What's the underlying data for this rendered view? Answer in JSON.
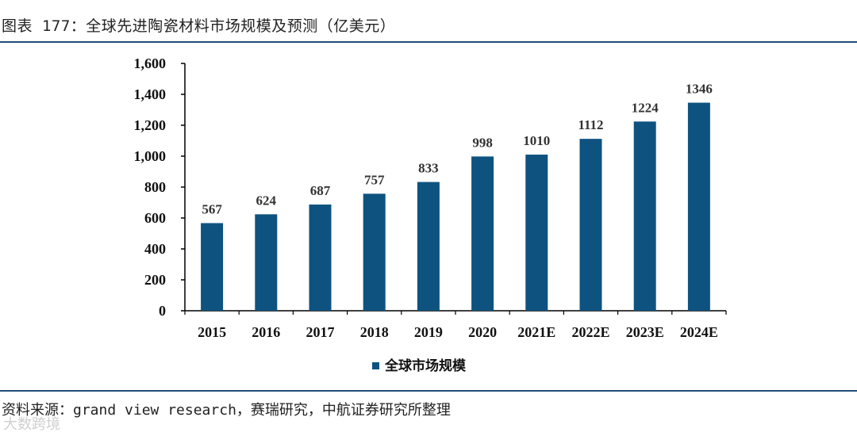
{
  "header": {
    "title": "图表 177：全球先进陶瓷材料市场规模及预测（亿美元）"
  },
  "footer": {
    "source": "资料来源：grand view research，赛瑞研究，中航证券研究所整理",
    "watermark": "大数跨境"
  },
  "chart_data": {
    "type": "bar",
    "title": "全球先进陶瓷材料市场规模及预测（亿美元）",
    "categories": [
      "2015",
      "2016",
      "2017",
      "2018",
      "2019",
      "2020",
      "2021E",
      "2022E",
      "2023E",
      "2024E"
    ],
    "series": [
      {
        "name": "全球市场规模",
        "values": [
          567,
          624,
          687,
          757,
          833,
          998,
          1010,
          1112,
          1224,
          1346
        ],
        "color": "#0e5380"
      }
    ],
    "ylim": [
      0,
      1600
    ],
    "yticks": [
      0,
      200,
      400,
      600,
      800,
      1000,
      1200,
      1400,
      1600
    ],
    "ytick_labels": [
      "0",
      "200",
      "400",
      "600",
      "800",
      "1,000",
      "1,200",
      "1,400",
      "1,600"
    ],
    "xlabel": "",
    "ylabel": "",
    "grid": false,
    "legend": "bottom-center"
  }
}
